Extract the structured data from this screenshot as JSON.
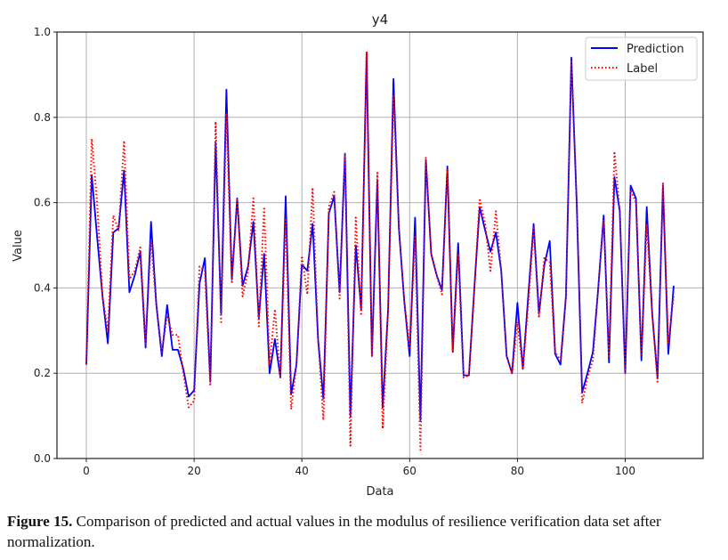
{
  "chart_data": {
    "type": "line",
    "title": "y4",
    "xlabel": "Data",
    "ylabel": "Value",
    "xlim": [
      -5.45,
      114.45
    ],
    "ylim": [
      0,
      1
    ],
    "xticks": [
      0,
      20,
      40,
      60,
      80,
      100
    ],
    "yticks": [
      0.0,
      0.2,
      0.4,
      0.6,
      0.8,
      1.0
    ],
    "xtick_labels": [
      "0",
      "20",
      "40",
      "60",
      "80",
      "100"
    ],
    "ytick_labels": [
      "0.0",
      "0.2",
      "0.4",
      "0.6",
      "0.8",
      "1.0"
    ],
    "grid": true,
    "legend_position": "top-right",
    "series": [
      {
        "name": "Prediction",
        "color": "#0000ff",
        "style": "solid",
        "values": [
          0.22,
          0.665,
          0.52,
          0.38,
          0.27,
          0.53,
          0.54,
          0.675,
          0.39,
          0.43,
          0.485,
          0.26,
          0.555,
          0.36,
          0.24,
          0.36,
          0.255,
          0.255,
          0.21,
          0.145,
          0.16,
          0.41,
          0.47,
          0.18,
          0.74,
          0.34,
          0.865,
          0.42,
          0.61,
          0.405,
          0.45,
          0.555,
          0.33,
          0.48,
          0.2,
          0.28,
          0.19,
          0.615,
          0.15,
          0.22,
          0.455,
          0.44,
          0.55,
          0.28,
          0.14,
          0.575,
          0.615,
          0.39,
          0.715,
          0.1,
          0.5,
          0.35,
          0.95,
          0.24,
          0.65,
          0.12,
          0.35,
          0.89,
          0.54,
          0.37,
          0.24,
          0.565,
          0.09,
          0.7,
          0.48,
          0.43,
          0.395,
          0.685,
          0.25,
          0.505,
          0.195,
          0.195,
          0.4,
          0.59,
          0.535,
          0.485,
          0.53,
          0.44,
          0.24,
          0.2,
          0.365,
          0.21,
          0.38,
          0.55,
          0.34,
          0.455,
          0.51,
          0.245,
          0.22,
          0.38,
          0.94,
          0.6,
          0.155,
          0.2,
          0.25,
          0.4,
          0.57,
          0.225,
          0.66,
          0.58,
          0.2,
          0.64,
          0.61,
          0.23,
          0.59,
          0.34,
          0.19,
          0.64,
          0.245,
          0.405
        ]
      },
      {
        "name": "Label",
        "color": "#ff0000",
        "style": "dotted",
        "values": [
          0.22,
          0.75,
          0.6,
          0.38,
          0.3,
          0.57,
          0.535,
          0.745,
          0.42,
          0.44,
          0.495,
          0.27,
          0.51,
          0.36,
          0.25,
          0.335,
          0.29,
          0.29,
          0.2,
          0.12,
          0.135,
          0.45,
          0.44,
          0.17,
          0.79,
          0.32,
          0.81,
          0.41,
          0.61,
          0.38,
          0.44,
          0.61,
          0.31,
          0.59,
          0.22,
          0.35,
          0.19,
          0.56,
          0.115,
          0.22,
          0.475,
          0.385,
          0.635,
          0.28,
          0.09,
          0.59,
          0.625,
          0.375,
          0.715,
          0.03,
          0.565,
          0.335,
          0.955,
          0.24,
          0.67,
          0.07,
          0.35,
          0.85,
          0.54,
          0.37,
          0.26,
          0.52,
          0.02,
          0.705,
          0.48,
          0.43,
          0.385,
          0.68,
          0.25,
          0.48,
          0.19,
          0.195,
          0.4,
          0.61,
          0.55,
          0.44,
          0.58,
          0.44,
          0.24,
          0.2,
          0.32,
          0.21,
          0.36,
          0.54,
          0.33,
          0.47,
          0.46,
          0.25,
          0.23,
          0.38,
          0.93,
          0.6,
          0.13,
          0.19,
          0.23,
          0.4,
          0.56,
          0.24,
          0.72,
          0.58,
          0.2,
          0.63,
          0.6,
          0.24,
          0.55,
          0.34,
          0.18,
          0.645,
          0.27,
          0.38
        ]
      }
    ]
  },
  "caption": {
    "label": "Figure 15.",
    "text": " Comparison of predicted and actual values in the modulus of resilience verification data set after normalization."
  }
}
